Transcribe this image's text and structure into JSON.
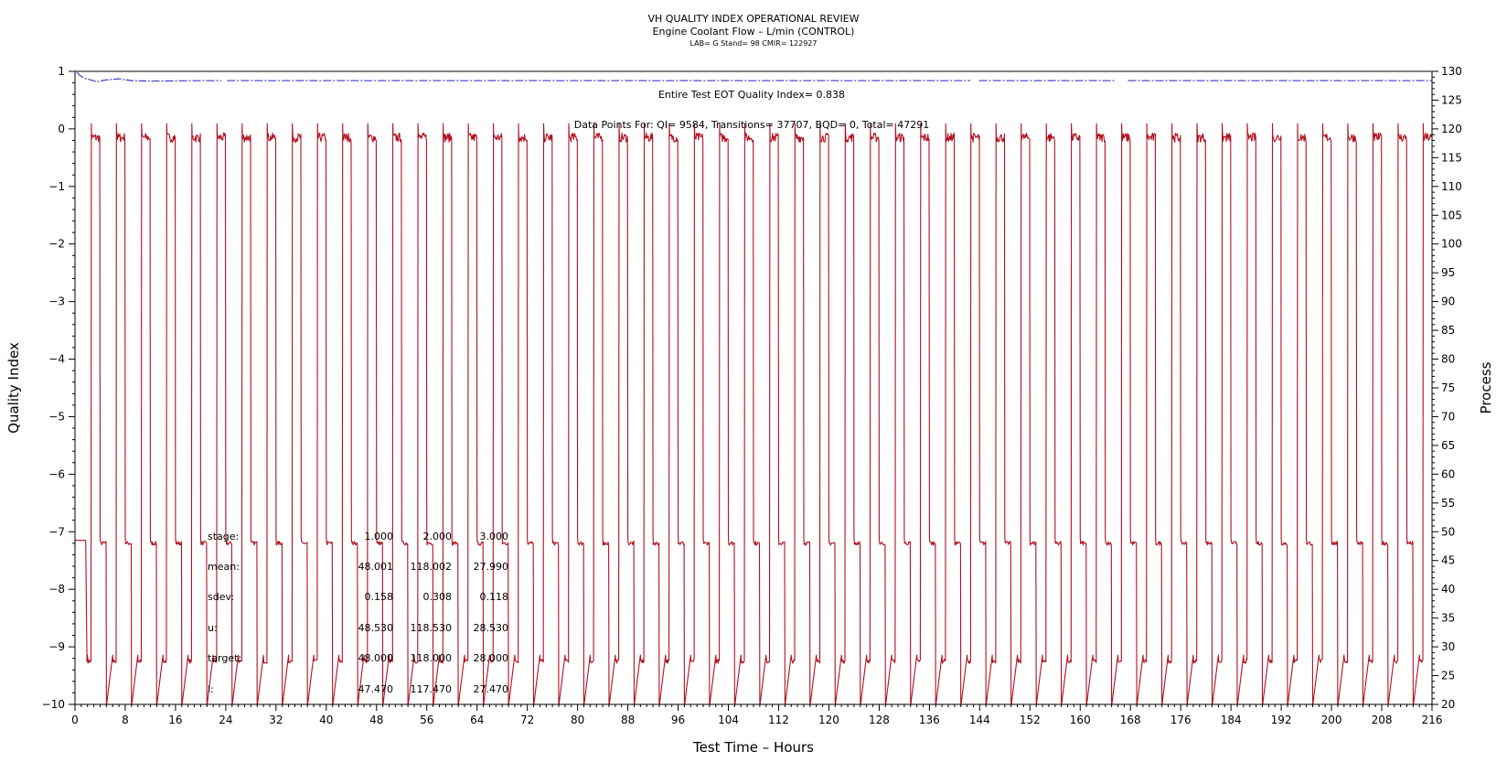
{
  "header": {
    "title": "VH QUALITY INDEX OPERATIONAL REVIEW",
    "subtitle": "Engine Coolant Flow – L/min (CONTROL)",
    "info": "LAB= G Stand= 98 CMIR= 122927"
  },
  "chart_data": {
    "type": "line",
    "xlabel": "Test Time – Hours",
    "ylabel": "Quality Index",
    "y2label": "Process",
    "xlim": [
      0,
      216
    ],
    "ylim": [
      -10,
      1
    ],
    "y2lim": [
      20,
      130
    ],
    "x_ticks": [
      0,
      8,
      16,
      24,
      32,
      40,
      48,
      56,
      64,
      72,
      80,
      88,
      96,
      104,
      112,
      120,
      128,
      136,
      144,
      152,
      160,
      168,
      176,
      184,
      192,
      200,
      208,
      216
    ],
    "y_ticks": [
      1,
      0,
      -1,
      -2,
      -3,
      -4,
      -5,
      -6,
      -7,
      -8,
      -9,
      -10
    ],
    "y2_ticks": [
      130,
      125,
      120,
      115,
      110,
      105,
      100,
      95,
      90,
      85,
      80,
      75,
      70,
      65,
      60,
      55,
      50,
      45,
      40,
      35,
      30,
      25,
      20
    ],
    "annotations": {
      "quality_index": "Entire Test EOT Quality Index=   0.838",
      "data_points": "Data Points For: QI=  9584, Transitions= 37707, BQD=     0, Total= 47291"
    },
    "series": [
      {
        "role": "quality-index",
        "axis": "left",
        "color": "#2020c0",
        "points": [
          [
            0.3,
            0.98
          ],
          [
            0.8,
            0.93
          ],
          [
            1.5,
            0.88
          ],
          [
            2.5,
            0.85
          ],
          [
            3.5,
            0.82
          ],
          [
            5,
            0.85
          ],
          [
            7,
            0.87
          ],
          [
            9,
            0.84
          ],
          [
            12,
            0.83
          ],
          [
            20,
            0.84
          ],
          [
            216,
            0.84
          ]
        ],
        "gaps": [
          [
            23.4,
            24.2
          ],
          [
            142.5,
            143.8
          ],
          [
            165.5,
            167.5
          ]
        ]
      },
      {
        "role": "process",
        "axis": "right",
        "color": "#b01020",
        "cycle_hours": 4,
        "first_cycle_start": 2,
        "cycles": 54,
        "steps": [
          {
            "offset": 0.0,
            "value": 27.5
          },
          {
            "offset": 0.6,
            "value": 118.5
          },
          {
            "offset": 2.0,
            "value": 48.0
          },
          {
            "offset": 3.0,
            "value": 20.0
          }
        ],
        "pre_start": [
          [
            0,
            48.5
          ],
          [
            1.7,
            48.5
          ],
          [
            1.9,
            27.5
          ]
        ]
      }
    ],
    "stats_table": {
      "rows": [
        {
          "label": "stage:",
          "values": [
            "1.000",
            "2.000",
            "3.000"
          ]
        },
        {
          "label": "mean:",
          "values": [
            "48.001",
            "118.002",
            "27.990"
          ]
        },
        {
          "label": "sdev:",
          "values": [
            "0.158",
            "0.308",
            "0.118"
          ]
        },
        {
          "label": "u:",
          "values": [
            "48.530",
            "118.530",
            "28.530"
          ]
        },
        {
          "label": "target:",
          "values": [
            "48.000",
            "118.000",
            "28.000"
          ]
        },
        {
          "label": "l:",
          "values": [
            "47.470",
            "117.470",
            "27.470"
          ]
        }
      ]
    }
  }
}
